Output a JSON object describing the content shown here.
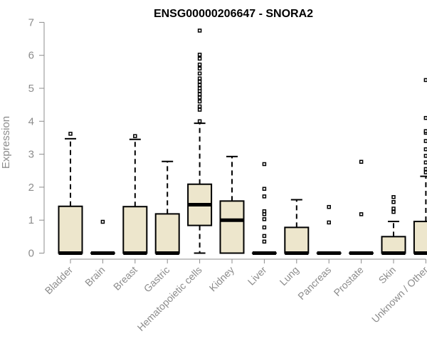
{
  "chart_data": {
    "type": "boxplot",
    "title": "ENSG00000206647 - SNORA2",
    "xlabel": "",
    "ylabel": "Expression",
    "ylim": [
      0,
      7
    ],
    "yticks": [
      0,
      1,
      2,
      3,
      4,
      5,
      6,
      7
    ],
    "categories": [
      "Bladder",
      "Brain",
      "Breast",
      "Gastric",
      "Hematopoietic cells",
      "Kidney",
      "Liver",
      "Lung",
      "Pancreas",
      "Prostate",
      "Skin",
      "Unknown / Other"
    ],
    "box_fill": "#ede6cc",
    "series": [
      {
        "name": "Bladder",
        "q1": 0,
        "median": 0,
        "q3": 1.42,
        "whisker_low": 0,
        "whisker_high": 3.47,
        "outliers": [
          3.62
        ]
      },
      {
        "name": "Brain",
        "q1": 0,
        "median": 0,
        "q3": 0,
        "whisker_low": 0,
        "whisker_high": 0,
        "outliers": [
          0.95
        ]
      },
      {
        "name": "Breast",
        "q1": 0,
        "median": 0,
        "q3": 1.41,
        "whisker_low": 0,
        "whisker_high": 3.45,
        "outliers": [
          3.55
        ]
      },
      {
        "name": "Gastric",
        "q1": 0,
        "median": 0,
        "q3": 1.19,
        "whisker_low": 0,
        "whisker_high": 2.78,
        "outliers": []
      },
      {
        "name": "Hematopoietic cells",
        "q1": 0.84,
        "median": 1.47,
        "q3": 2.09,
        "whisker_low": 0,
        "whisker_high": 3.94,
        "outliers": [
          4.0,
          4.35,
          4.45,
          4.6,
          4.72,
          4.82,
          4.92,
          5.0,
          5.1,
          5.2,
          5.3,
          5.45,
          5.6,
          5.72,
          5.9,
          6.02,
          6.75
        ]
      },
      {
        "name": "Kidney",
        "q1": 0,
        "median": 1.0,
        "q3": 1.58,
        "whisker_low": 0,
        "whisker_high": 2.93,
        "outliers": []
      },
      {
        "name": "Liver",
        "q1": 0,
        "median": 0,
        "q3": 0,
        "whisker_low": 0,
        "whisker_high": 0,
        "outliers": [
          0.35,
          0.52,
          0.78,
          1.03,
          1.18,
          1.27,
          1.72,
          1.95,
          2.7
        ]
      },
      {
        "name": "Lung",
        "q1": 0,
        "median": 0,
        "q3": 0.78,
        "whisker_low": 0,
        "whisker_high": 1.62,
        "outliers": []
      },
      {
        "name": "Pancreas",
        "q1": 0,
        "median": 0,
        "q3": 0,
        "whisker_low": 0,
        "whisker_high": 0,
        "outliers": [
          0.93,
          1.4
        ]
      },
      {
        "name": "Prostate",
        "q1": 0,
        "median": 0,
        "q3": 0,
        "whisker_low": 0,
        "whisker_high": 0,
        "outliers": [
          1.18,
          2.77
        ]
      },
      {
        "name": "Skin",
        "q1": 0,
        "median": 0,
        "q3": 0.5,
        "whisker_low": 0,
        "whisker_high": 0.96,
        "outliers": [
          1.25,
          1.35,
          1.55,
          1.7
        ]
      },
      {
        "name": "Unknown / Other",
        "q1": 0,
        "median": 0,
        "q3": 0.96,
        "whisker_low": 0,
        "whisker_high": 2.33,
        "outliers": [
          2.45,
          2.55,
          2.75,
          2.95,
          3.15,
          3.4,
          3.65,
          3.7,
          4.1,
          5.25
        ]
      }
    ]
  }
}
